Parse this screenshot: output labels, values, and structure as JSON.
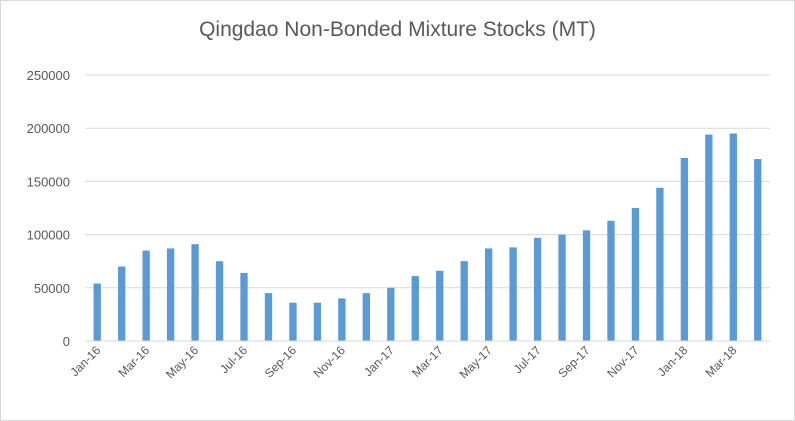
{
  "chart_data": {
    "type": "bar",
    "title": "Qingdao Non-Bonded Mixture Stocks (MT)",
    "xlabel": "",
    "ylabel": "",
    "ylim": [
      0,
      250000
    ],
    "yticks": [
      0,
      50000,
      100000,
      150000,
      200000,
      250000
    ],
    "ytick_labels": [
      "0",
      "50000",
      "100000",
      "150000",
      "200000",
      "250000"
    ],
    "grid": true,
    "legend": "none",
    "bar_color": "#5b9bd5",
    "categories": [
      "Jan-16",
      "Feb-16",
      "Mar-16",
      "Apr-16",
      "May-16",
      "Jun-16",
      "Jul-16",
      "Aug-16",
      "Sep-16",
      "Oct-16",
      "Nov-16",
      "Dec-16",
      "Jan-17",
      "Feb-17",
      "Mar-17",
      "Apr-17",
      "May-17",
      "Jun-17",
      "Jul-17",
      "Aug-17",
      "Sep-17",
      "Oct-17",
      "Nov-17",
      "Dec-17",
      "Jan-18",
      "Feb-18",
      "Mar-18",
      "Apr-18"
    ],
    "xtick_labels": [
      "Jan-16",
      "Mar-16",
      "May-16",
      "Jul-16",
      "Sep-16",
      "Nov-16",
      "Jan-17",
      "Mar-17",
      "May-17",
      "Jul-17",
      "Sep-17",
      "Nov-17",
      "Jan-18",
      "Mar-18"
    ],
    "values": [
      54000,
      70000,
      85000,
      87000,
      91000,
      75000,
      64000,
      45000,
      36000,
      36000,
      40000,
      45000,
      50000,
      61000,
      66000,
      75000,
      87000,
      88000,
      97000,
      100000,
      104000,
      113000,
      125000,
      144000,
      172000,
      194000,
      195000,
      171000
    ]
  }
}
